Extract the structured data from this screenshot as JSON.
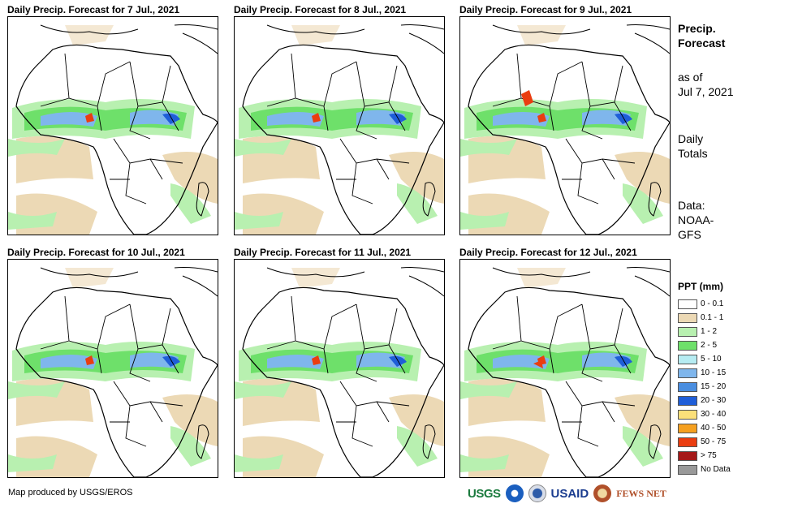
{
  "panels": [
    {
      "title": "Daily Precip. Forecast for 7 Jul., 2021"
    },
    {
      "title": "Daily Precip. Forecast for 8 Jul., 2021"
    },
    {
      "title": "Daily Precip. Forecast for 9 Jul., 2021"
    },
    {
      "title": "Daily Precip. Forecast for 10 Jul., 2021"
    },
    {
      "title": "Daily Precip. Forecast for 11 Jul., 2021"
    },
    {
      "title": "Daily Precip. Forecast for 12 Jul., 2021"
    }
  ],
  "sidebar": {
    "title_line1": "Precip.",
    "title_line2": "Forecast",
    "asof_line1": "as of",
    "asof_line2": "Jul 7, 2021",
    "totals_line1": "Daily",
    "totals_line2": "Totals",
    "data_line1": "Data:",
    "data_line2": "NOAA-",
    "data_line3": "GFS"
  },
  "legend": {
    "title": "PPT (mm)",
    "items": [
      {
        "label": "0 - 0.1",
        "color": "#ffffff"
      },
      {
        "label": "0.1 - 1",
        "color": "#ecd9b5"
      },
      {
        "label": "1 - 2",
        "color": "#b8f0b0"
      },
      {
        "label": "2 - 5",
        "color": "#6ee06a"
      },
      {
        "label": "5 - 10",
        "color": "#b6ecf2"
      },
      {
        "label": "10 - 15",
        "color": "#7fb6ec"
      },
      {
        "label": "15 - 20",
        "color": "#4a8ee0"
      },
      {
        "label": "20 - 30",
        "color": "#1f5ed8"
      },
      {
        "label": "30 - 40",
        "color": "#fbe07a"
      },
      {
        "label": "40 - 50",
        "color": "#f5a020"
      },
      {
        "label": "50 - 75",
        "color": "#ea3d10"
      },
      {
        "label": "> 75",
        "color": "#a51818"
      },
      {
        "label": "No Data",
        "color": "#999999"
      }
    ]
  },
  "credit": "Map produced by USGS/EROS",
  "logos": {
    "usgs": "USGS",
    "usaid": "USAID",
    "fews": "FEWS NET"
  }
}
